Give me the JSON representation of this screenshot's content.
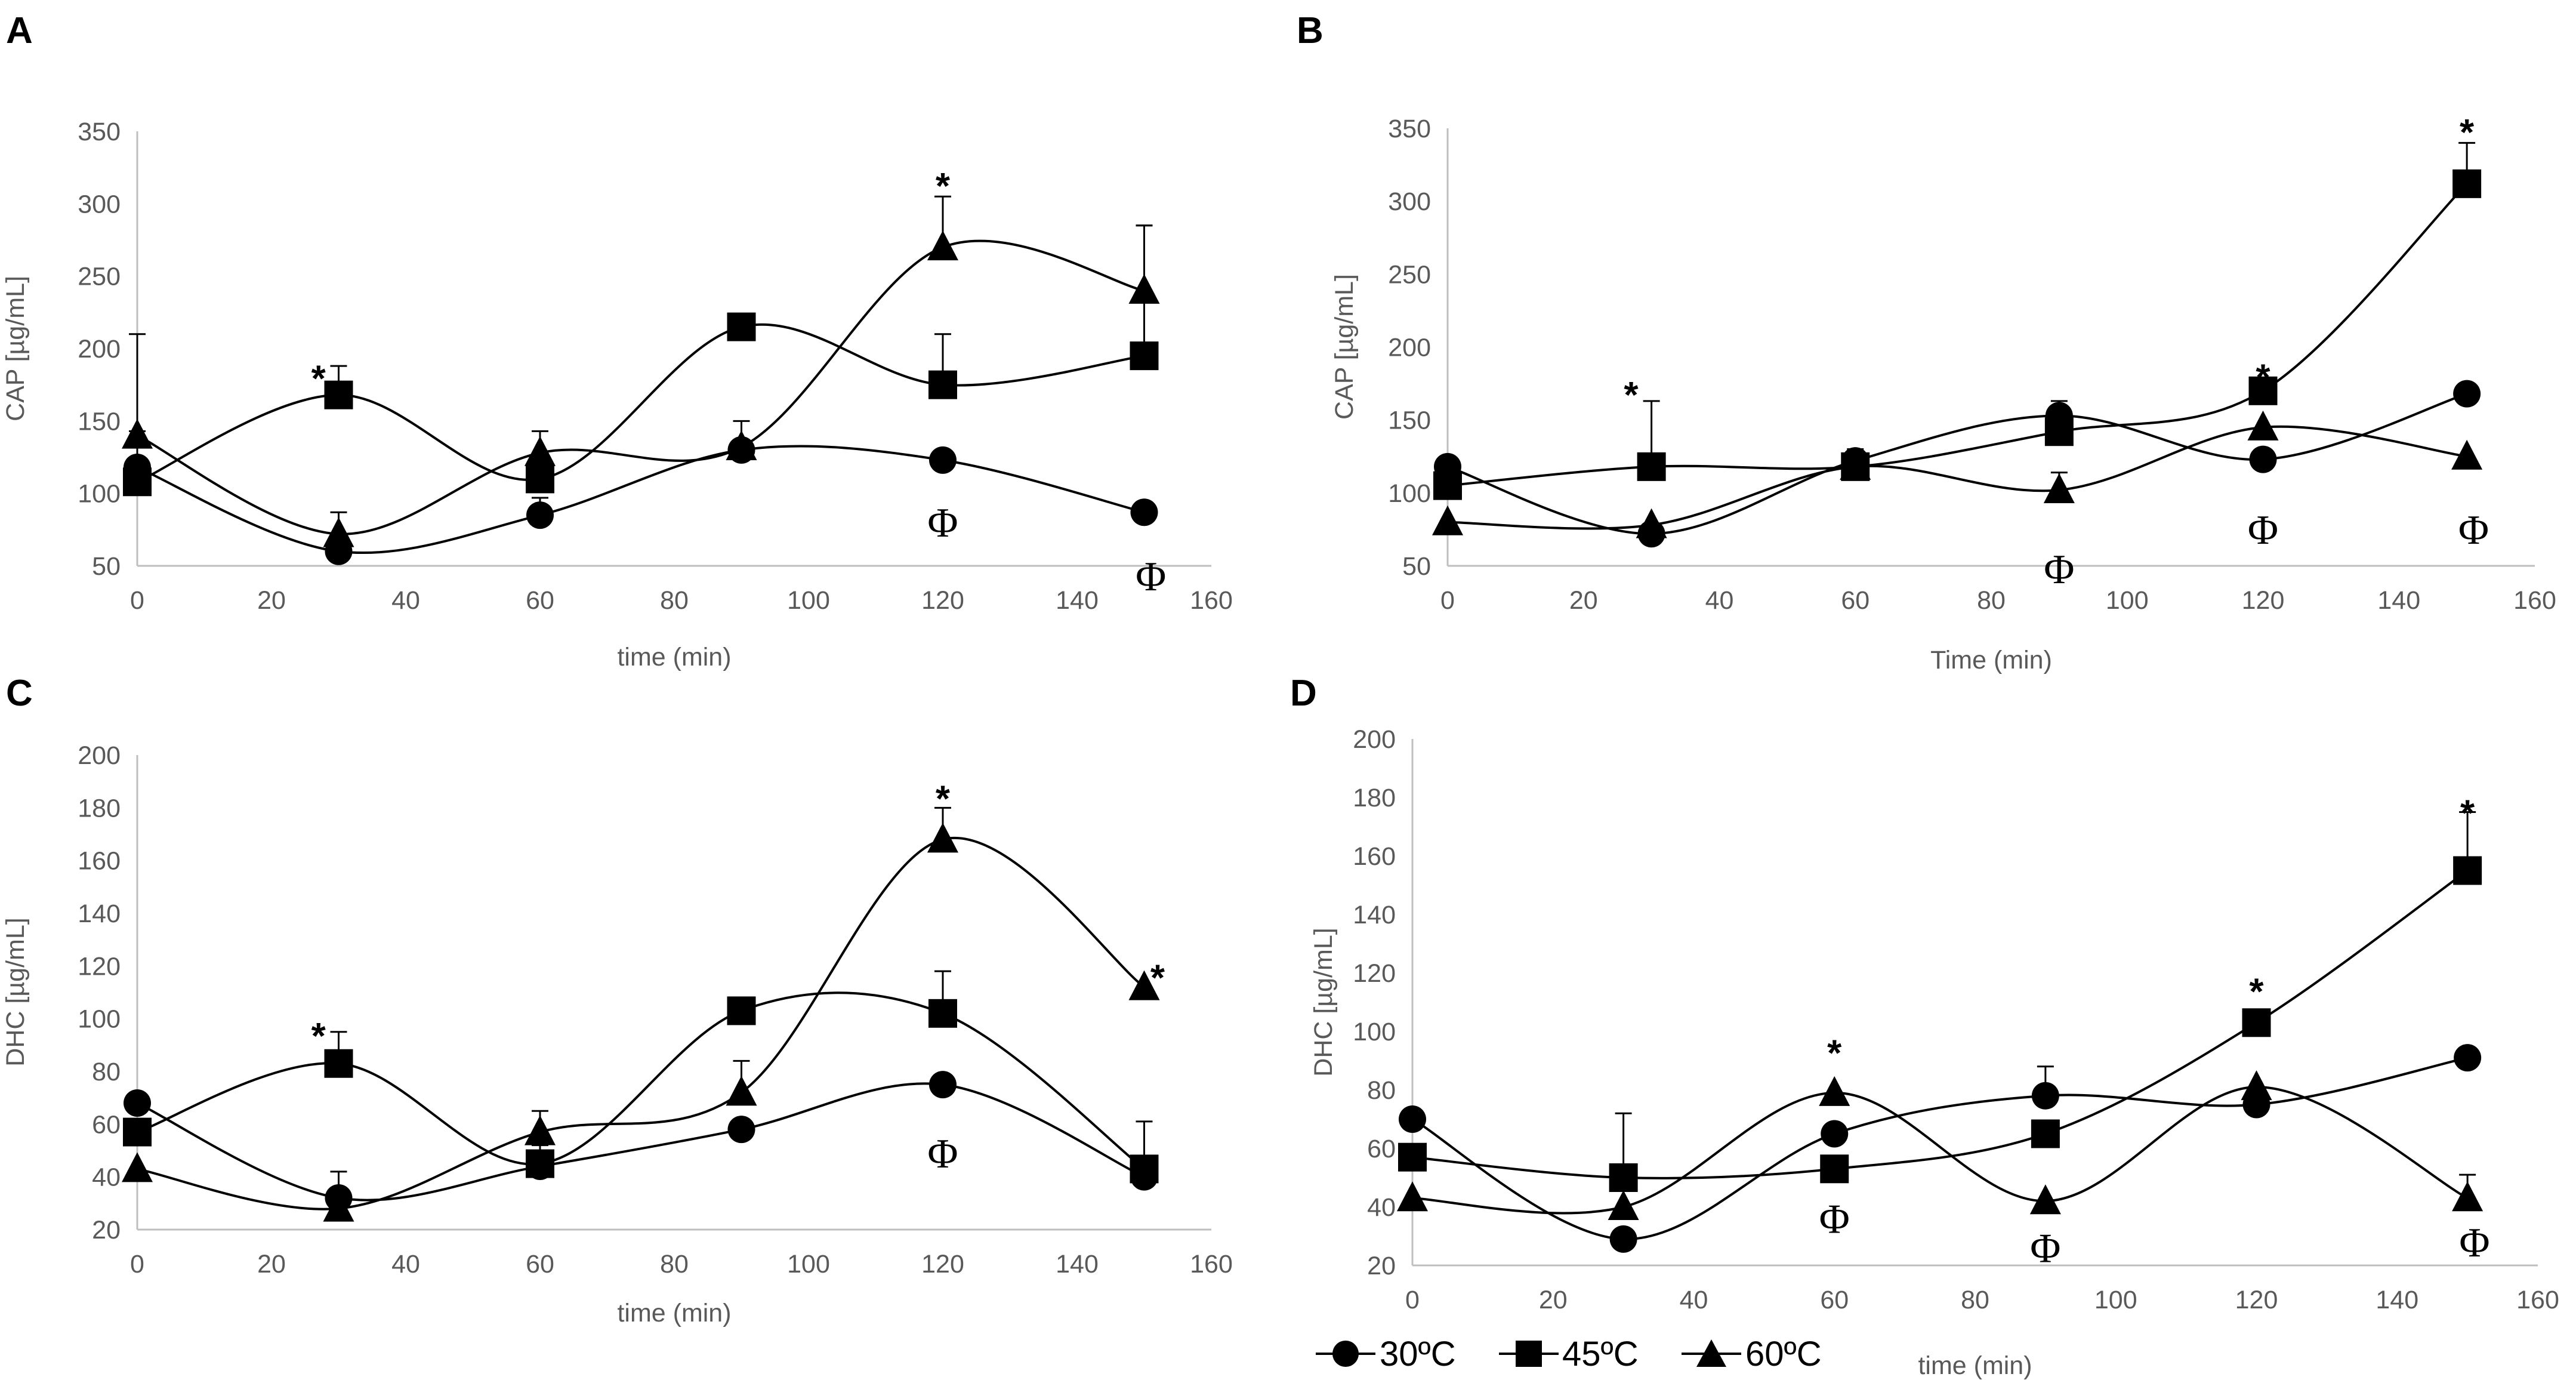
{
  "colors": {
    "marker": "#000000",
    "axis": "#bfbfbf",
    "text": "#595959",
    "background": "#ffffff"
  },
  "legend": {
    "items": [
      {
        "label": "30ºC",
        "marker": "circle"
      },
      {
        "label": "45ºC",
        "marker": "square"
      },
      {
        "label": "60ºC",
        "marker": "triangle"
      }
    ]
  },
  "chart_data": [
    {
      "panel": "A",
      "type": "line",
      "xlabel": "time (min)",
      "ylabel": "CAP [µg/mL]",
      "xlim": [
        0,
        160
      ],
      "ylim": [
        50,
        350
      ],
      "xticks": [
        0,
        20,
        40,
        60,
        80,
        100,
        120,
        140,
        160
      ],
      "yticks": [
        50,
        100,
        150,
        200,
        250,
        300,
        350
      ],
      "x": [
        0,
        30,
        60,
        90,
        120,
        150
      ],
      "series": [
        {
          "name": "30ºC",
          "marker": "circle",
          "values": [
            118,
            60,
            85,
            130,
            123,
            87
          ],
          "errors": [
            0,
            0,
            12,
            0,
            0,
            0
          ]
        },
        {
          "name": "45ºC",
          "marker": "square",
          "values": [
            108,
            168,
            110,
            215,
            175,
            195
          ],
          "errors": [
            35,
            20,
            0,
            0,
            35,
            90
          ]
        },
        {
          "name": "60ºC",
          "marker": "triangle",
          "values": [
            140,
            72,
            128,
            132,
            270,
            240
          ],
          "errors": [
            70,
            15,
            15,
            18,
            35,
            45
          ]
        }
      ],
      "annotations": [
        {
          "text": "*",
          "x": 27,
          "y": 182
        },
        {
          "text": "*",
          "x": 120,
          "y": 315
        },
        {
          "text": "Φ",
          "x": 120,
          "y": 80
        },
        {
          "text": "Φ",
          "x": 151,
          "y": 43
        }
      ]
    },
    {
      "panel": "B",
      "type": "line",
      "xlabel": "Time (min)",
      "ylabel": "CAP [µg/mL]",
      "xlim": [
        0,
        160
      ],
      "ylim": [
        50,
        350
      ],
      "xticks": [
        0,
        20,
        40,
        60,
        80,
        100,
        120,
        140,
        160
      ],
      "yticks": [
        50,
        100,
        150,
        200,
        250,
        300,
        350
      ],
      "x": [
        0,
        30,
        60,
        90,
        120,
        150
      ],
      "series": [
        {
          "name": "30ºC",
          "marker": "circle",
          "values": [
            118,
            72,
            122,
            153,
            123,
            168
          ],
          "errors": [
            0,
            0,
            0,
            10,
            0,
            0
          ]
        },
        {
          "name": "45ºC",
          "marker": "square",
          "values": [
            105,
            118,
            118,
            142,
            170,
            312
          ],
          "errors": [
            0,
            45,
            0,
            0,
            0,
            28
          ]
        },
        {
          "name": "60ºC",
          "marker": "triangle",
          "values": [
            80,
            78,
            118,
            102,
            145,
            125
          ],
          "errors": [
            0,
            0,
            12,
            12,
            0,
            0
          ]
        }
      ],
      "annotations": [
        {
          "text": "*",
          "x": 27,
          "y": 170
        },
        {
          "text": "*",
          "x": 120,
          "y": 182
        },
        {
          "text": "*",
          "x": 150,
          "y": 350
        },
        {
          "text": "Φ",
          "x": 90,
          "y": 48
        },
        {
          "text": "Φ",
          "x": 120,
          "y": 75
        },
        {
          "text": "Φ",
          "x": 151,
          "y": 75
        }
      ]
    },
    {
      "panel": "C",
      "type": "line",
      "xlabel": "time (min)",
      "ylabel": "DHC [µg/mL]",
      "xlim": [
        0,
        160
      ],
      "ylim": [
        20,
        200
      ],
      "xticks": [
        0,
        20,
        40,
        60,
        80,
        100,
        120,
        140,
        160
      ],
      "yticks": [
        20,
        40,
        60,
        80,
        100,
        120,
        140,
        160,
        180,
        200
      ],
      "x": [
        0,
        30,
        60,
        90,
        120,
        150
      ],
      "series": [
        {
          "name": "30ºC",
          "marker": "circle",
          "values": [
            68,
            32,
            44,
            58,
            75,
            40
          ],
          "errors": [
            0,
            10,
            8,
            0,
            0,
            0
          ]
        },
        {
          "name": "45ºC",
          "marker": "square",
          "values": [
            57,
            83,
            45,
            103,
            102,
            43
          ],
          "errors": [
            0,
            12,
            0,
            0,
            16,
            18
          ]
        },
        {
          "name": "60ºC",
          "marker": "triangle",
          "values": [
            43,
            28,
            57,
            72,
            168,
            112
          ],
          "errors": [
            0,
            0,
            8,
            12,
            12,
            0
          ]
        }
      ],
      "annotations": [
        {
          "text": "*",
          "x": 27,
          "y": 95
        },
        {
          "text": "*",
          "x": 120,
          "y": 185
        },
        {
          "text": "*",
          "x": 152,
          "y": 117
        },
        {
          "text": "Φ",
          "x": 120,
          "y": 49
        }
      ]
    },
    {
      "panel": "D",
      "type": "line",
      "xlabel": "time (min)",
      "ylabel": "DHC [µg/mL]",
      "xlim": [
        0,
        160
      ],
      "ylim": [
        20,
        200
      ],
      "xticks": [
        0,
        20,
        40,
        60,
        80,
        100,
        120,
        140,
        160
      ],
      "yticks": [
        20,
        40,
        60,
        80,
        100,
        120,
        140,
        160,
        180,
        200
      ],
      "x": [
        0,
        30,
        60,
        90,
        120,
        150
      ],
      "series": [
        {
          "name": "30ºC",
          "marker": "circle",
          "values": [
            70,
            29,
            65,
            78,
            75,
            91
          ],
          "errors": [
            0,
            0,
            0,
            10,
            0,
            0
          ]
        },
        {
          "name": "45ºC",
          "marker": "square",
          "values": [
            57,
            50,
            53,
            65,
            103,
            155
          ],
          "errors": [
            0,
            22,
            0,
            0,
            0,
            20
          ]
        },
        {
          "name": "60ºC",
          "marker": "triangle",
          "values": [
            43,
            40,
            79,
            42,
            81,
            43
          ],
          "errors": [
            0,
            0,
            0,
            0,
            0,
            8
          ]
        }
      ],
      "annotations": [
        {
          "text": "*",
          "x": 60,
          "y": 94
        },
        {
          "text": "*",
          "x": 120,
          "y": 115
        },
        {
          "text": "*",
          "x": 150,
          "y": 176
        },
        {
          "text": "Φ",
          "x": 60,
          "y": 36
        },
        {
          "text": "Φ",
          "x": 90,
          "y": 26
        },
        {
          "text": "Φ",
          "x": 151,
          "y": 28
        }
      ]
    }
  ]
}
